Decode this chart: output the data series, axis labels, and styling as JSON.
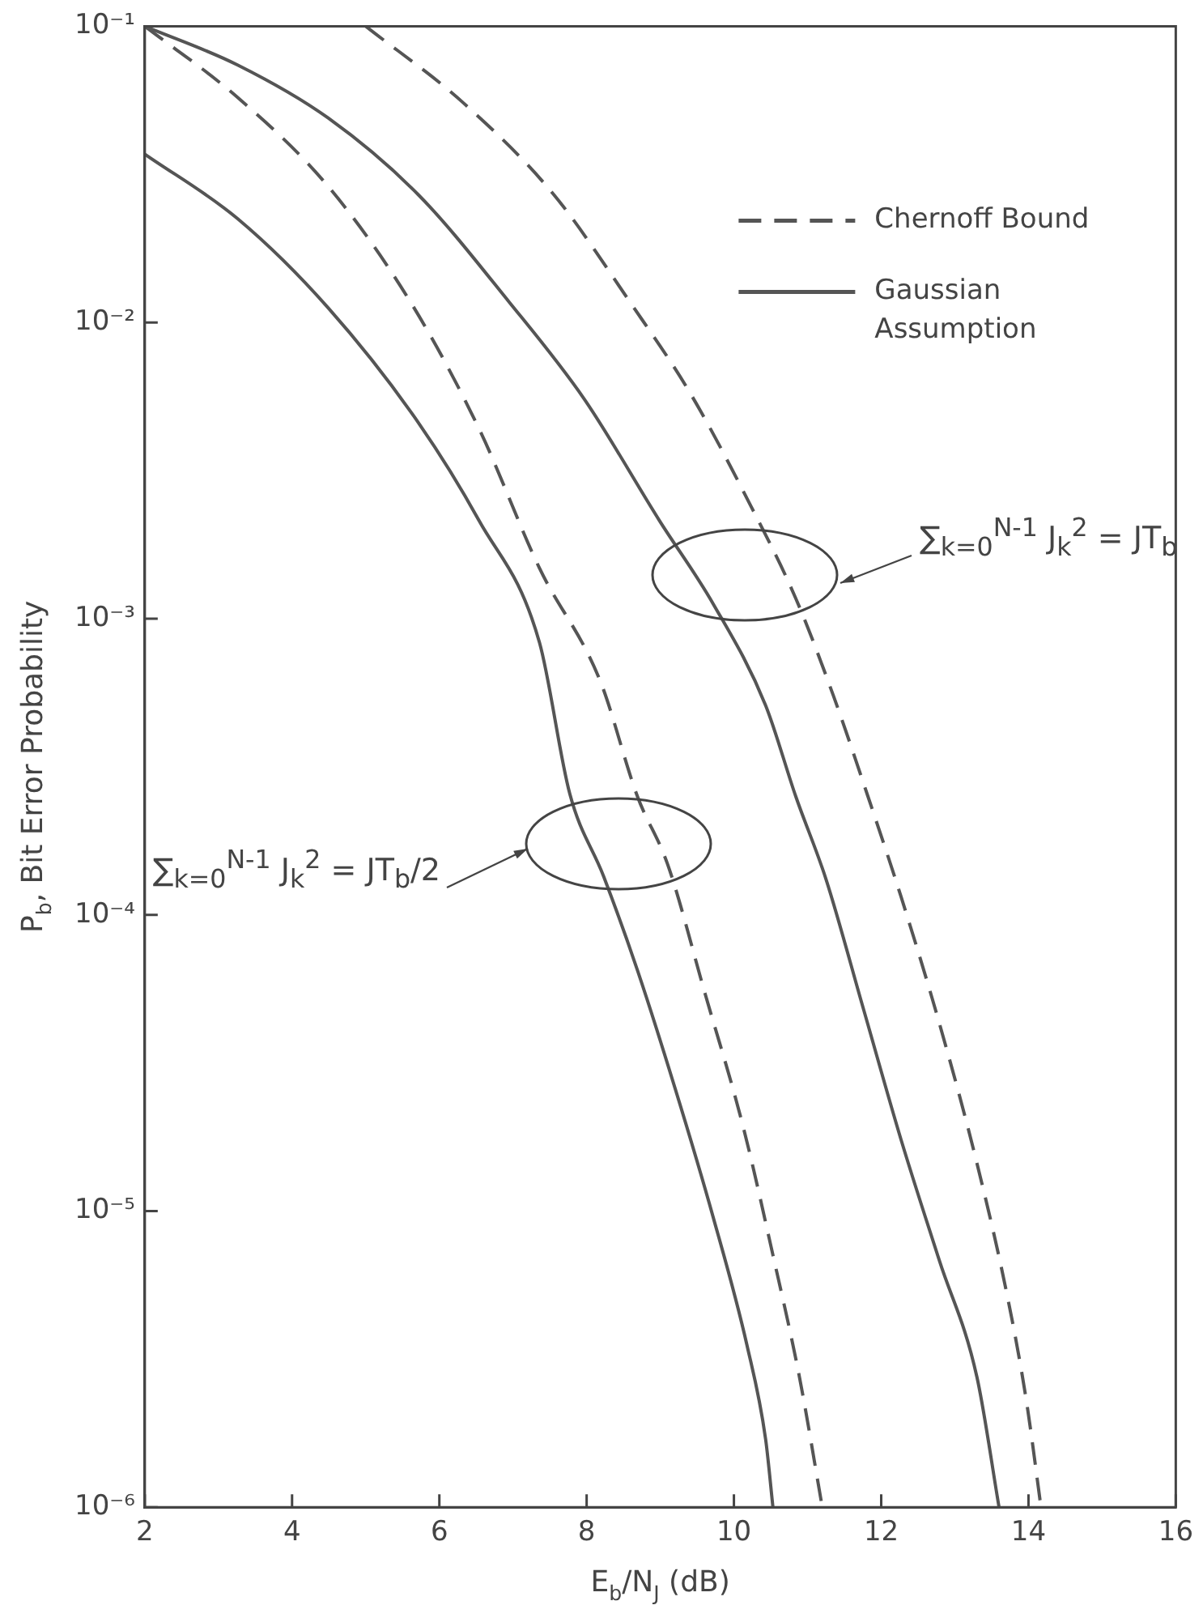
{
  "chart_data": {
    "type": "line",
    "xlabel": "E$_{b}$/N$_{J}$ (dB)",
    "ylabel": "P$_{b}$, Bit Error Probability",
    "log": "y",
    "grid": false,
    "legend": "top right",
    "marker": "none",
    "xlim": [
      2,
      16
    ],
    "xticks": [
      2,
      4,
      6,
      8,
      10,
      12,
      14,
      16
    ],
    "ylim": [
      1e-06,
      0.1
    ],
    "yticks": [
      {
        "value": 0.1,
        "label": "10⁻¹"
      },
      {
        "value": 0.01,
        "label": "10⁻²"
      },
      {
        "value": 0.001,
        "label": "10⁻³"
      },
      {
        "value": 0.0001,
        "label": "10⁻⁴"
      },
      {
        "value": 1e-05,
        "label": "10⁻⁵"
      },
      {
        "value": 1e-06,
        "label": "10⁻⁶"
      }
    ],
    "series": [
      {
        "name": "Chernoff Bound",
        "color": "#555555",
        "line_style": "dashed",
        "x": [
          5.0,
          6.33,
          7.56,
          8.59,
          9.41,
          10.23,
          10.84,
          11.35,
          11.82,
          12.27,
          12.79,
          13.3,
          13.71,
          13.97,
          14.17
        ],
        "values": [
          0.1,
          0.055,
          0.0269,
          0.0117,
          0.00575,
          0.0024,
          0.00117,
          0.00055,
          0.000251,
          0.000115,
          4.3e-05,
          1.45e-05,
          5.2e-06,
          2.3e-06,
          1e-06
        ]
      },
      {
        "name": "Gaussian Assumption",
        "color": "#555555",
        "line_style": "solid",
        "x": [
          2,
          3.26,
          4.49,
          5.72,
          6.95,
          7.97,
          8.99,
          9.72,
          10.43,
          10.84,
          11.25,
          11.76,
          12.27,
          12.79,
          13.3,
          13.6
        ],
        "values": [
          0.1,
          0.074,
          0.049,
          0.0269,
          0.0117,
          0.0055,
          0.00214,
          0.00112,
          0.00051,
          0.000251,
          0.000132,
          4.8e-05,
          1.74e-05,
          6.8e-06,
          2.75e-06,
          1e-06
        ]
      },
      {
        "color": "#555555",
        "line_style": "dashed",
        "x": [
          2,
          3.26,
          4.49,
          5.61,
          6.54,
          7.36,
          8.18,
          8.69,
          9.1,
          9.61,
          10.12,
          10.53,
          10.89,
          11.2
        ],
        "values": [
          0.1,
          0.0575,
          0.0288,
          0.0117,
          0.00437,
          0.00148,
          0.00062,
          0.000251,
          0.000148,
          5.4e-05,
          1.95e-05,
          7.1e-06,
          2.75e-06,
          1e-06
        ]
      },
      {
        "color": "#555555",
        "line_style": "solid",
        "x": [
          2,
          3.26,
          4.49,
          5.72,
          6.54,
          7.36,
          7.77,
          8.23,
          8.69,
          9.2,
          9.72,
          10.18,
          10.43,
          10.53
        ],
        "values": [
          0.037,
          0.0224,
          0.0112,
          0.00457,
          0.00214,
          0.00083,
          0.000257,
          0.000135,
          6.5e-05,
          2.6e-05,
          9.5e-06,
          3.5e-06,
          1.7e-06,
          1e-06
        ]
      }
    ],
    "annotations": [
      "∑$_{k=0}$$^{N-1}$ J$_{k}$$^{2}$ = JT$_{b}$",
      "∑$_{k=0}$$^{N-1}$ J$_{k}$$^{2}$ = JT$_{b}$/2"
    ]
  }
}
